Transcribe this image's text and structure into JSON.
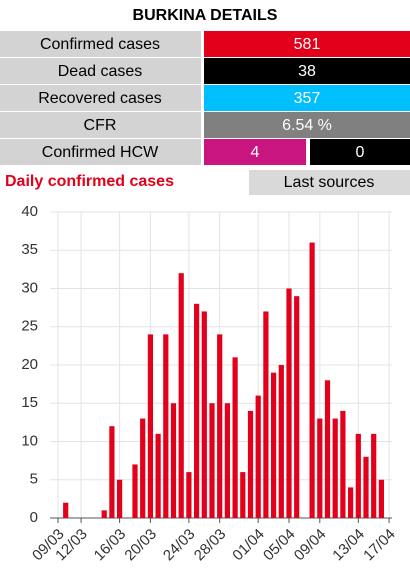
{
  "header": {
    "title": "BURKINA DETAILS"
  },
  "table": {
    "rows": [
      [
        "Confirmed cases",
        "581"
      ],
      [
        "Dead cases",
        "38"
      ],
      [
        "Recovered cases",
        "357"
      ],
      [
        "CFR",
        "6.54 %"
      ],
      [
        "Confirmed HCW",
        "4",
        "0"
      ]
    ]
  },
  "section_title": "Daily confirmed cases",
  "button": "Last sources",
  "chart_data": {
    "type": "bar",
    "categories": [
      "09/03",
      null,
      null,
      "12/03",
      null,
      null,
      null,
      null,
      "16/03",
      null,
      null,
      null,
      "20/03",
      null,
      null,
      null,
      null,
      "24/03",
      null,
      null,
      null,
      "28/03",
      null,
      null,
      null,
      null,
      "01/04",
      null,
      null,
      null,
      "05/04",
      null,
      null,
      null,
      "09/04",
      null,
      null,
      null,
      null,
      "13/04",
      null,
      null,
      null,
      "17/04"
    ],
    "values": [
      0,
      2,
      0,
      0,
      0,
      0,
      1,
      12,
      5,
      0,
      7,
      13,
      24,
      11,
      24,
      15,
      32,
      6,
      28,
      27,
      15,
      24,
      15,
      21,
      6,
      14,
      16,
      27,
      19,
      20,
      30,
      29,
      0,
      36,
      13,
      18,
      13,
      14,
      4,
      11,
      8,
      11,
      5,
      0
    ],
    "color": "#e2001a",
    "ylim": [
      0,
      40
    ],
    "yticks": [
      0,
      5,
      10,
      15,
      20,
      25,
      30,
      35,
      40
    ],
    "grid": true
  }
}
